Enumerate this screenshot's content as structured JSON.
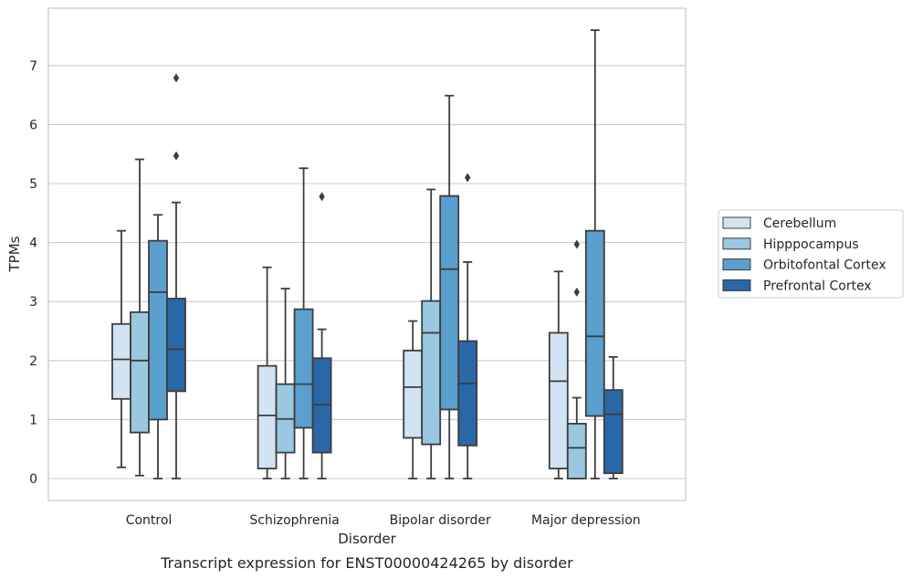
{
  "chart_data": {
    "type": "box",
    "title": "",
    "caption": "Transcript expression for ENST00000424265 by disorder",
    "xlabel": "Disorder",
    "ylabel": "TPMs",
    "ylim": [
      -0.36,
      7.9
    ],
    "yticks": [
      0,
      1,
      2,
      3,
      4,
      5,
      6,
      7
    ],
    "grid": true,
    "legend_position": "right",
    "categories": [
      "Control",
      "Schizophrenia",
      "Bipolar disorder",
      "Major depression"
    ],
    "series": [
      {
        "name": "Cerebellum",
        "color": "#d2e3f3",
        "boxes": [
          {
            "whislo": 0.19,
            "q1": 1.35,
            "med": 2.02,
            "q3": 2.62,
            "whishi": 4.2,
            "fliers": []
          },
          {
            "whislo": 0.0,
            "q1": 0.17,
            "med": 1.07,
            "q3": 1.91,
            "whishi": 3.58,
            "fliers": []
          },
          {
            "whislo": 0.0,
            "q1": 0.69,
            "med": 1.55,
            "q3": 2.17,
            "whishi": 2.67,
            "fliers": []
          },
          {
            "whislo": 0.0,
            "q1": 0.17,
            "med": 1.65,
            "q3": 2.47,
            "whishi": 3.51,
            "fliers": []
          }
        ]
      },
      {
        "name": "Hipppocampus",
        "color": "#9ac8e0",
        "boxes": [
          {
            "whislo": 0.05,
            "q1": 0.78,
            "med": 2.0,
            "q3": 2.82,
            "whishi": 5.41,
            "fliers": []
          },
          {
            "whislo": 0.0,
            "q1": 0.44,
            "med": 1.01,
            "q3": 1.6,
            "whishi": 3.22,
            "fliers": []
          },
          {
            "whislo": 0.0,
            "q1": 0.58,
            "med": 2.47,
            "q3": 3.01,
            "whishi": 4.9,
            "fliers": []
          },
          {
            "whislo": 0.0,
            "q1": 0.0,
            "med": 0.52,
            "q3": 0.93,
            "whishi": 1.37,
            "fliers": [
              3.16,
              3.97
            ]
          }
        ]
      },
      {
        "name": "Orbitofontal Cortex",
        "color": "#5a9fcd",
        "boxes": [
          {
            "whislo": 0.0,
            "q1": 1.0,
            "med": 3.16,
            "q3": 4.03,
            "whishi": 4.47,
            "fliers": []
          },
          {
            "whislo": 0.0,
            "q1": 0.86,
            "med": 1.6,
            "q3": 2.87,
            "whishi": 5.26,
            "fliers": []
          },
          {
            "whislo": 0.0,
            "q1": 1.17,
            "med": 3.55,
            "q3": 4.79,
            "whishi": 6.49,
            "fliers": []
          },
          {
            "whislo": 0.0,
            "q1": 1.06,
            "med": 2.41,
            "q3": 4.2,
            "whishi": 7.6,
            "fliers": []
          }
        ]
      },
      {
        "name": "Prefrontal Cortex",
        "color": "#2a67a7",
        "boxes": [
          {
            "whislo": 0.0,
            "q1": 1.48,
            "med": 2.19,
            "q3": 3.05,
            "whishi": 4.68,
            "fliers": [
              5.47,
              6.79
            ]
          },
          {
            "whislo": 0.0,
            "q1": 0.44,
            "med": 1.25,
            "q3": 2.04,
            "whishi": 2.53,
            "fliers": [
              4.78
            ]
          },
          {
            "whislo": 0.0,
            "q1": 0.56,
            "med": 1.61,
            "q3": 2.33,
            "whishi": 3.67,
            "fliers": [
              5.1
            ]
          },
          {
            "whislo": 0.0,
            "q1": 0.09,
            "med": 1.09,
            "q3": 1.5,
            "whishi": 2.06,
            "fliers": []
          }
        ]
      }
    ]
  }
}
